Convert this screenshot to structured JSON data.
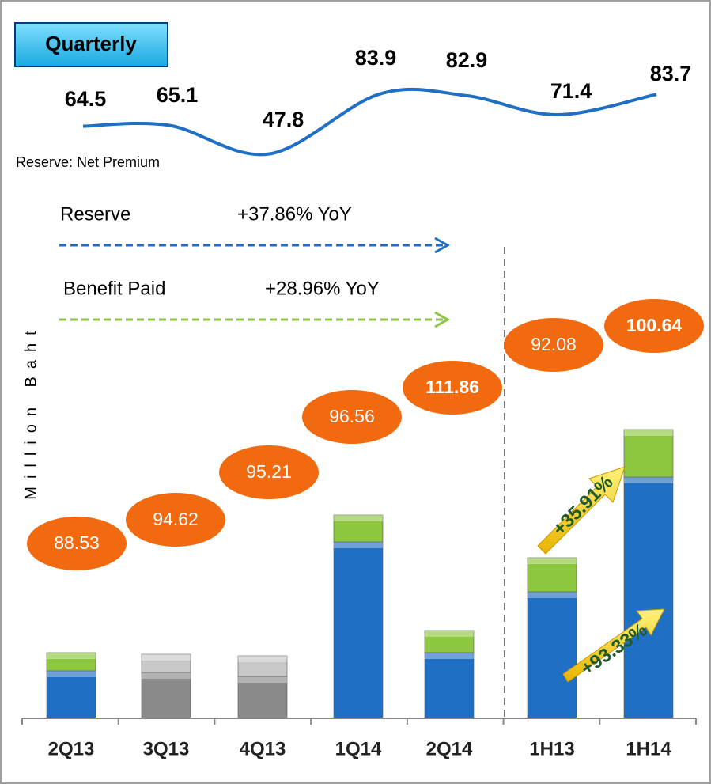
{
  "chart_data": {
    "type": "bar",
    "title": "Quarterly",
    "y_axis_label": "Million Baht",
    "categories": [
      "2Q13",
      "3Q13",
      "4Q13",
      "1Q14",
      "2Q14",
      "1H13",
      "1H14"
    ],
    "ylim": [
      0,
      380
    ],
    "series": [
      {
        "name": "Reserve",
        "color": "#1f6fc4",
        "bar_colors": [
          "#1f6fc4",
          "#8a8a8a",
          "#8a8a8a",
          "#1f6fc4",
          "#1f6fc4",
          "#1f6fc4",
          "#1f6fc4"
        ],
        "values": [
          60,
          58,
          53,
          223,
          83,
          160,
          305
        ],
        "change": "+37.86% YoY"
      },
      {
        "name": "Benefit Paid",
        "color": "#8dc63f",
        "bar_colors": [
          "#8dc63f",
          "#c8c8c8",
          "#c8c8c8",
          "#8dc63f",
          "#8dc63f",
          "#8dc63f",
          "#8dc63f"
        ],
        "values": [
          23,
          23,
          26,
          34,
          28,
          43,
          60
        ],
        "change": "+28.96% YoY"
      }
    ],
    "line": {
      "name": "Reserve: Net Premium",
      "color": "#1f6fc4",
      "values": [
        64.5,
        65.1,
        47.8,
        83.9,
        82.9,
        71.4,
        83.7
      ]
    },
    "ovals": {
      "color": "#f26a10",
      "values": [
        88.53,
        94.62,
        95.21,
        96.56,
        111.86,
        92.08,
        100.64
      ]
    },
    "annotations": [
      "+35.91%",
      "+93.33%"
    ]
  }
}
